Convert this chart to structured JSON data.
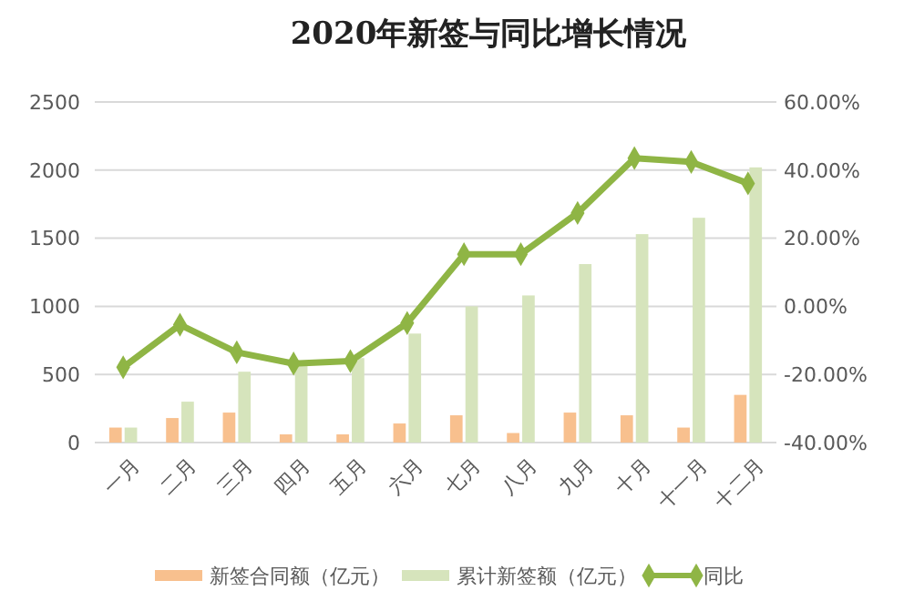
{
  "chart_data": {
    "type": "bar",
    "title": "2020年新签与同比增长情况",
    "categories": [
      "一月",
      "二月",
      "三月",
      "四月",
      "五月",
      "六月",
      "七月",
      "八月",
      "九月",
      "十月",
      "十一月",
      "十二月"
    ],
    "series": [
      {
        "name": "新签合同额（亿元）",
        "color": "#f8c08e",
        "values": [
          110,
          180,
          220,
          60,
          60,
          140,
          200,
          70,
          220,
          200,
          110,
          350
        ]
      },
      {
        "name": "累计新签额（亿元）",
        "color": "#d6e4bc",
        "values": [
          110,
          300,
          520,
          580,
          620,
          800,
          1000,
          1080,
          1310,
          1530,
          1650,
          2020
        ]
      },
      {
        "name": "同比",
        "type": "line",
        "axis": "y2",
        "color": "#8fb545",
        "marker": "diamond",
        "line_style": "solid",
        "values": [
          -17.9,
          -5.4,
          -13.5,
          -16.8,
          -16.1,
          -4.9,
          15.3,
          15.3,
          27.4,
          43.5,
          42.4,
          36.1
        ]
      }
    ],
    "ylim": [
      0,
      2500
    ],
    "yticks": [
      0,
      500,
      1000,
      1500,
      2000,
      2500
    ],
    "y2lim": [
      -40,
      60
    ],
    "y2ticks": [
      {
        "value": -40,
        "label": "-40.00%"
      },
      {
        "value": -20,
        "label": "-20.00%"
      },
      {
        "value": 0,
        "label": "0.00%"
      },
      {
        "value": 20,
        "label": "20.00%"
      },
      {
        "value": 40,
        "label": "40.00%"
      },
      {
        "value": 60,
        "label": "60.00%"
      }
    ],
    "grid": "y",
    "legend": "bottom"
  }
}
